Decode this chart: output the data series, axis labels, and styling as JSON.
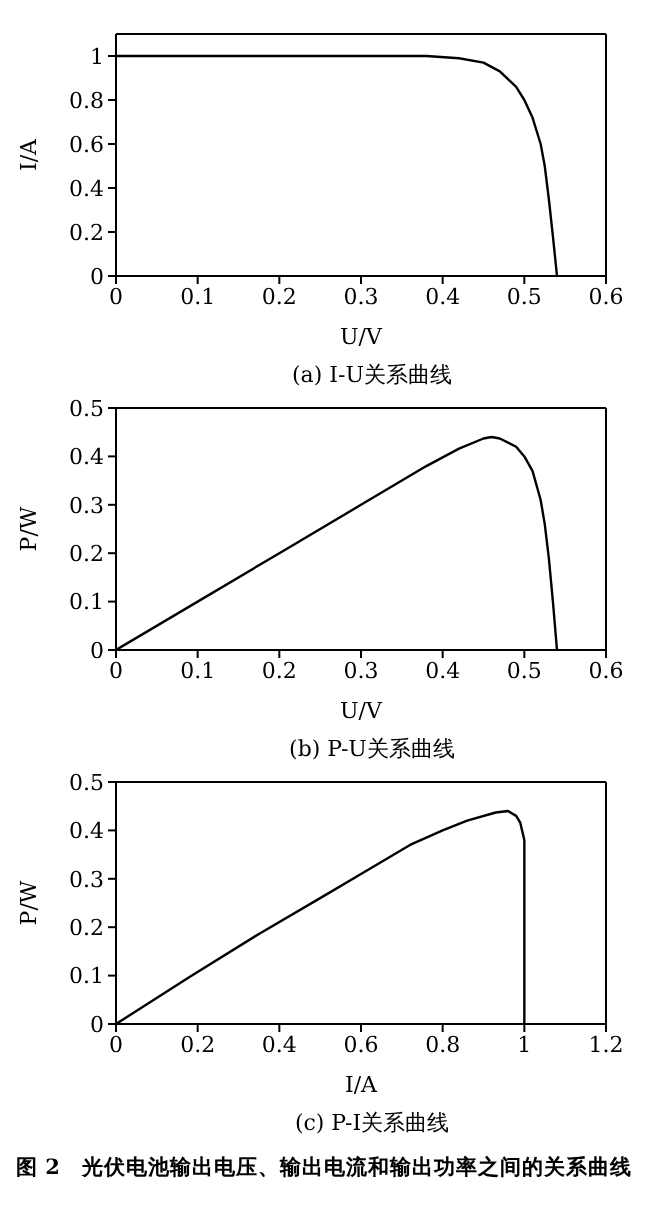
{
  "chart_data": [
    {
      "type": "line",
      "xlabel": "U/V",
      "ylabel": "I/A",
      "xlim": [
        0,
        0.6
      ],
      "xticks": [
        0,
        0.1,
        0.2,
        0.3,
        0.4,
        0.5,
        0.6
      ],
      "ylim": [
        0,
        1.1
      ],
      "yticks": [
        0,
        0.2,
        0.4,
        0.6,
        0.8,
        1
      ],
      "grid": false,
      "marker": "none",
      "line_style": "solid",
      "annotations": [
        "(a) I-U关系曲线"
      ],
      "series": [
        {
          "color": "#000000",
          "x": [
            0,
            0.1,
            0.2,
            0.3,
            0.38,
            0.42,
            0.45,
            0.47,
            0.49,
            0.5,
            0.51,
            0.52,
            0.525,
            0.53,
            0.535,
            0.54
          ],
          "values": [
            1,
            1,
            1,
            1,
            1,
            0.99,
            0.97,
            0.93,
            0.86,
            0.8,
            0.72,
            0.6,
            0.5,
            0.35,
            0.18,
            0
          ]
        }
      ]
    },
    {
      "type": "line",
      "xlabel": "U/V",
      "ylabel": "P/W",
      "xlim": [
        0,
        0.6
      ],
      "xticks": [
        0,
        0.1,
        0.2,
        0.3,
        0.4,
        0.5,
        0.6
      ],
      "ylim": [
        0,
        0.5
      ],
      "yticks": [
        0,
        0.1,
        0.2,
        0.3,
        0.4,
        0.5
      ],
      "grid": false,
      "marker": "none",
      "line_style": "solid",
      "annotations": [
        "(b) P-U关系曲线"
      ],
      "series": [
        {
          "color": "#000000",
          "x": [
            0,
            0.1,
            0.2,
            0.3,
            0.38,
            0.42,
            0.45,
            0.46,
            0.47,
            0.49,
            0.5,
            0.51,
            0.52,
            0.525,
            0.53,
            0.535,
            0.54
          ],
          "values": [
            0,
            0.1,
            0.2,
            0.3,
            0.38,
            0.416,
            0.437,
            0.44,
            0.437,
            0.42,
            0.4,
            0.37,
            0.31,
            0.26,
            0.19,
            0.1,
            0
          ]
        }
      ]
    },
    {
      "type": "line",
      "xlabel": "I/A",
      "ylabel": "P/W",
      "xlim": [
        0,
        1.2
      ],
      "xticks": [
        0,
        0.2,
        0.4,
        0.6,
        0.8,
        1,
        1.2
      ],
      "ylim": [
        0,
        0.5
      ],
      "yticks": [
        0,
        0.1,
        0.2,
        0.3,
        0.4,
        0.5
      ],
      "grid": false,
      "marker": "none",
      "line_style": "solid",
      "annotations": [
        "(c) P-I关系曲线",
        "图 2　光伏电池输出电压、输出电流和输出功率之间的关系曲线"
      ],
      "series": [
        {
          "color": "#000000",
          "x": [
            0,
            0.18,
            0.35,
            0.5,
            0.6,
            0.72,
            0.8,
            0.86,
            0.93,
            0.96,
            0.98,
            0.99,
            1,
            1,
            1,
            1,
            1
          ],
          "values": [
            0,
            0.097,
            0.186,
            0.26,
            0.31,
            0.37,
            0.4,
            0.42,
            0.437,
            0.44,
            0.43,
            0.416,
            0.38,
            0.3,
            0.2,
            0.1,
            0
          ]
        }
      ]
    }
  ]
}
